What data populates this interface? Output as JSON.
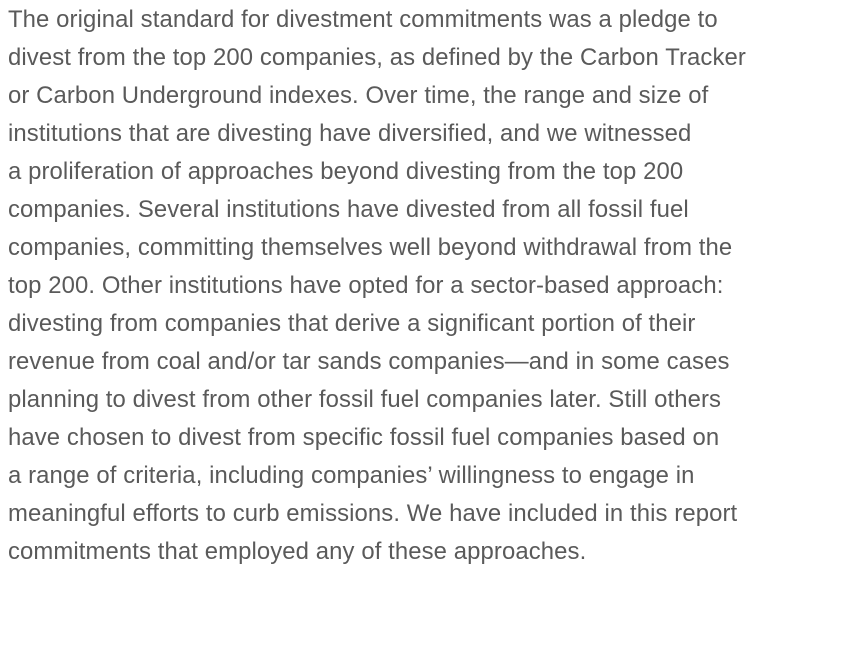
{
  "paragraph": {
    "lines": [
      "The original standard for divestment commitments was a pledge to",
      "divest from the top 200 companies, as defined by the Carbon Tracker",
      "or Carbon Underground indexes. Over time, the range and size of",
      "institutions that are divesting have diversified, and we witnessed",
      "a proliferation of approaches beyond divesting from the top 200",
      "companies. Several institutions have divested from all fossil fuel",
      "companies, committing themselves well beyond withdrawal from the",
      "top 200. Other institutions have opted for a sector-based approach:",
      "divesting from companies that derive a significant portion of their",
      "revenue from coal and/or tar sands companies—and in some cases",
      "planning to divest from other fossil fuel companies later. Still others",
      "have chosen to divest from specific fossil fuel companies based on",
      "a range of criteria, including companies’ willingness to engage in",
      "meaningful efforts to curb emissions. We have included in this report",
      "commitments that employed any of these approaches."
    ]
  }
}
